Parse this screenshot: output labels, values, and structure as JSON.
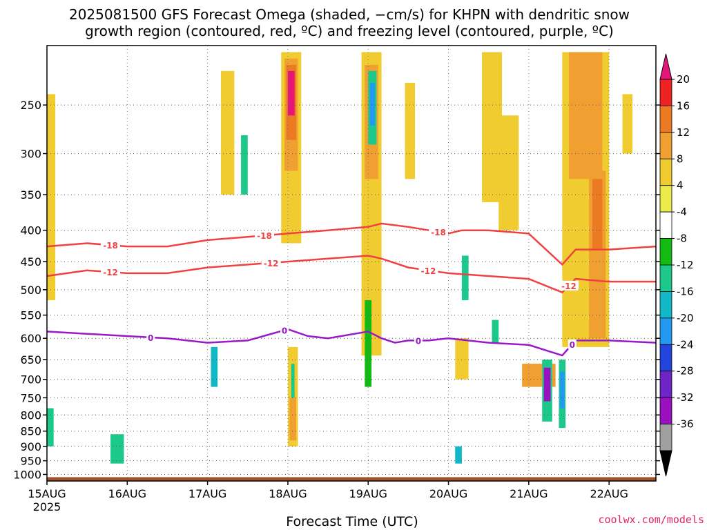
{
  "title_line1": "2025081500 GFS Forecast Omega (shaded, −cm/s) for KHPN with dendritic snow",
  "title_line2": "growth region (contoured, red, ºC) and freezing level (contoured, purple, ºC)",
  "credit": "coolwx.com/models",
  "chart_data": {
    "type": "heatmap",
    "xlabel": "Forecast Time (UTC)",
    "x_ticks": [
      {
        "label": "15AUG",
        "sub": "2025",
        "t": 0
      },
      {
        "label": "16AUG",
        "t": 24
      },
      {
        "label": "17AUG",
        "t": 48
      },
      {
        "label": "18AUG",
        "t": 72
      },
      {
        "label": "19AUG",
        "t": 96
      },
      {
        "label": "20AUG",
        "t": 120
      },
      {
        "label": "21AUG",
        "t": 144
      },
      {
        "label": "22AUG",
        "t": 168
      }
    ],
    "x_range_hours": [
      0,
      182
    ],
    "y_ticks": [
      250,
      300,
      350,
      400,
      450,
      500,
      550,
      600,
      650,
      700,
      750,
      800,
      850,
      900,
      950,
      1000
    ],
    "y_range_hPa": [
      200,
      1025
    ],
    "y_scale": "log-pressure",
    "grid": true,
    "ground_color": "#a0522d",
    "colorbar": {
      "levels": [
        "20",
        "16",
        "12",
        "8",
        "4",
        "-4",
        "-8",
        "-12",
        "-16",
        "-20",
        "-24",
        "-28",
        "-32",
        "-36"
      ],
      "colors": [
        "#ee2222",
        "#ec7a22",
        "#f0a030",
        "#f0cc30",
        "#ecea48",
        "#ffffff",
        "#11bb11",
        "#1cc88a",
        "#10b8c8",
        "#2399f0",
        "#2244dd",
        "#6f24c8",
        "#9a10c0",
        "#a0a0a0"
      ],
      "top_arrow": "#e6157a",
      "bottom_arrow": "#000000"
    },
    "omega_cells": [
      {
        "t0": 70,
        "t1": 76,
        "p0": 205,
        "p1": 420,
        "v": 6
      },
      {
        "t0": 71,
        "t1": 75,
        "p0": 210,
        "p1": 320,
        "v": 10
      },
      {
        "t0": 71.5,
        "t1": 74.5,
        "p0": 215,
        "p1": 285,
        "v": 14
      },
      {
        "t0": 72,
        "t1": 74,
        "p0": 220,
        "p1": 260,
        "v": 22
      },
      {
        "t0": 72,
        "t1": 75,
        "p0": 620,
        "p1": 900,
        "v": 6
      },
      {
        "t0": 72.5,
        "t1": 74.5,
        "p0": 750,
        "p1": 880,
        "v": 10
      },
      {
        "t0": 73,
        "t1": 74,
        "p0": 660,
        "p1": 750,
        "v": -10
      },
      {
        "t0": 94,
        "t1": 100,
        "p0": 205,
        "p1": 640,
        "v": 6
      },
      {
        "t0": 95,
        "t1": 99,
        "p0": 215,
        "p1": 330,
        "v": 10
      },
      {
        "t0": 96,
        "t1": 98.5,
        "p0": 220,
        "p1": 290,
        "v": -10
      },
      {
        "t0": 96.5,
        "t1": 98,
        "p0": 230,
        "p1": 270,
        "v": -18
      },
      {
        "t0": 95,
        "t1": 97,
        "p0": 520,
        "p1": 720,
        "v": -6
      },
      {
        "t0": 130,
        "t1": 136,
        "p0": 205,
        "p1": 360,
        "v": 6
      },
      {
        "t0": 154,
        "t1": 168,
        "p0": 205,
        "p1": 620,
        "v": 6
      },
      {
        "t0": 156,
        "t1": 166,
        "p0": 205,
        "p1": 330,
        "v": 10
      },
      {
        "t0": 162,
        "t1": 167,
        "p0": 320,
        "p1": 600,
        "v": 10
      },
      {
        "t0": 163,
        "t1": 166,
        "p0": 330,
        "p1": 430,
        "v": 14
      },
      {
        "t0": 142,
        "t1": 152,
        "p0": 660,
        "p1": 720,
        "v": 10
      },
      {
        "t0": 148,
        "t1": 151,
        "p0": 650,
        "p1": 820,
        "v": -10
      },
      {
        "t0": 148.5,
        "t1": 150.5,
        "p0": 670,
        "p1": 760,
        "v": -28
      },
      {
        "t0": 153,
        "t1": 155,
        "p0": 650,
        "p1": 840,
        "v": -10
      },
      {
        "t0": 153.3,
        "t1": 154.7,
        "p0": 680,
        "p1": 780,
        "v": -18
      },
      {
        "t0": 122,
        "t1": 126,
        "p0": 600,
        "p1": 700,
        "v": 6
      },
      {
        "t0": 124,
        "t1": 126,
        "p0": 440,
        "p1": 520,
        "v": -10
      },
      {
        "t0": 133,
        "t1": 135,
        "p0": 560,
        "p1": 610,
        "v": -10
      },
      {
        "t0": 0,
        "t1": 2.5,
        "p0": 240,
        "p1": 520,
        "v": 6
      },
      {
        "t0": 0,
        "t1": 2,
        "p0": 780,
        "p1": 900,
        "v": -8
      },
      {
        "t0": 19,
        "t1": 23,
        "p0": 860,
        "p1": 960,
        "v": -8
      },
      {
        "t0": 49,
        "t1": 51,
        "p0": 620,
        "p1": 720,
        "v": -12
      },
      {
        "t0": 58,
        "t1": 60,
        "p0": 280,
        "p1": 350,
        "v": -10
      },
      {
        "t0": 52,
        "t1": 56,
        "p0": 220,
        "p1": 350,
        "v": 6
      },
      {
        "t0": 107,
        "t1": 110,
        "p0": 230,
        "p1": 330,
        "v": 6
      },
      {
        "t0": 122,
        "t1": 124,
        "p0": 900,
        "p1": 960,
        "v": -14
      },
      {
        "t0": 135,
        "t1": 141,
        "p0": 260,
        "p1": 400,
        "v": 6
      },
      {
        "t0": 172,
        "t1": 175,
        "p0": 240,
        "p1": 300,
        "v": 6
      }
    ],
    "contours": [
      {
        "label": "-18",
        "color": "#f04040",
        "t": [
          0,
          12,
          24,
          36,
          48,
          60,
          72,
          84,
          96,
          100,
          108,
          120,
          124,
          132,
          144,
          154,
          158,
          168,
          182
        ],
        "p": [
          425,
          420,
          425,
          425,
          415,
          410,
          405,
          400,
          395,
          390,
          395,
          405,
          400,
          400,
          405,
          455,
          430,
          430,
          425
        ]
      },
      {
        "label": "-12",
        "color": "#f04040",
        "t": [
          0,
          12,
          24,
          36,
          48,
          60,
          72,
          84,
          96,
          100,
          108,
          120,
          132,
          144,
          154,
          158,
          168,
          182
        ],
        "p": [
          475,
          465,
          470,
          470,
          460,
          455,
          450,
          445,
          440,
          445,
          460,
          470,
          475,
          480,
          505,
          480,
          485,
          485
        ]
      },
      {
        "label": "0",
        "color": "#9a18c8",
        "t": [
          0,
          12,
          24,
          36,
          48,
          60,
          72,
          78,
          84,
          96,
          100,
          104,
          108,
          114,
          120,
          132,
          144,
          154,
          158,
          168,
          182
        ],
        "p": [
          585,
          590,
          595,
          600,
          610,
          605,
          580,
          595,
          600,
          585,
          600,
          610,
          605,
          605,
          600,
          610,
          615,
          640,
          605,
          605,
          610
        ]
      }
    ],
    "contour_label_positions": [
      {
        "contour": 0,
        "t": 19
      },
      {
        "contour": 0,
        "t": 65
      },
      {
        "contour": 0,
        "t": 117
      },
      {
        "contour": 1,
        "t": 19
      },
      {
        "contour": 1,
        "t": 67
      },
      {
        "contour": 1,
        "t": 114
      },
      {
        "contour": 1,
        "t": 156
      },
      {
        "contour": 2,
        "t": 31
      },
      {
        "contour": 2,
        "t": 71
      },
      {
        "contour": 2,
        "t": 111
      },
      {
        "contour": 2,
        "t": 157
      }
    ]
  }
}
